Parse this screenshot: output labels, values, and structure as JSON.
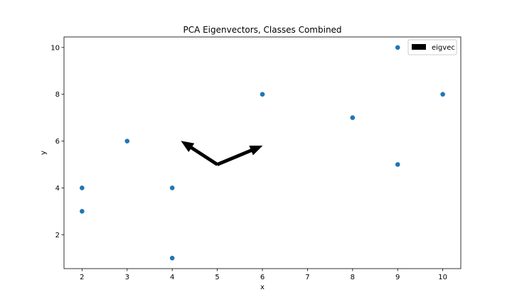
{
  "chart_data": {
    "type": "scatter",
    "title": "PCA Eigenvectors, Classes Combined",
    "xlabel": "x",
    "ylabel": "y",
    "xlim": [
      1.6,
      10.4
    ],
    "ylim": [
      0.55,
      10.45
    ],
    "xticks": [
      2,
      3,
      4,
      5,
      6,
      7,
      8,
      9,
      10
    ],
    "yticks": [
      2,
      4,
      6,
      8,
      10
    ],
    "grid": false,
    "legend": {
      "position": "top-right",
      "entries": [
        "eigvec"
      ]
    },
    "series": [
      {
        "type": "scatter",
        "color": "#1f77b4",
        "points": [
          {
            "x": 2,
            "y": 3
          },
          {
            "x": 2,
            "y": 4
          },
          {
            "x": 3,
            "y": 6
          },
          {
            "x": 4,
            "y": 4
          },
          {
            "x": 4,
            "y": 1
          },
          {
            "x": 6,
            "y": 8
          },
          {
            "x": 8,
            "y": 7
          },
          {
            "x": 9,
            "y": 10
          },
          {
            "x": 9,
            "y": 5
          },
          {
            "x": 10,
            "y": 8
          }
        ]
      },
      {
        "type": "quiver",
        "name": "eigvec",
        "color": "#000000",
        "origin": {
          "x": 5,
          "y": 5
        },
        "vectors": [
          {
            "dx": 1.0,
            "dy": 0.8
          },
          {
            "dx": -0.8,
            "dy": 1.0
          }
        ]
      }
    ]
  }
}
